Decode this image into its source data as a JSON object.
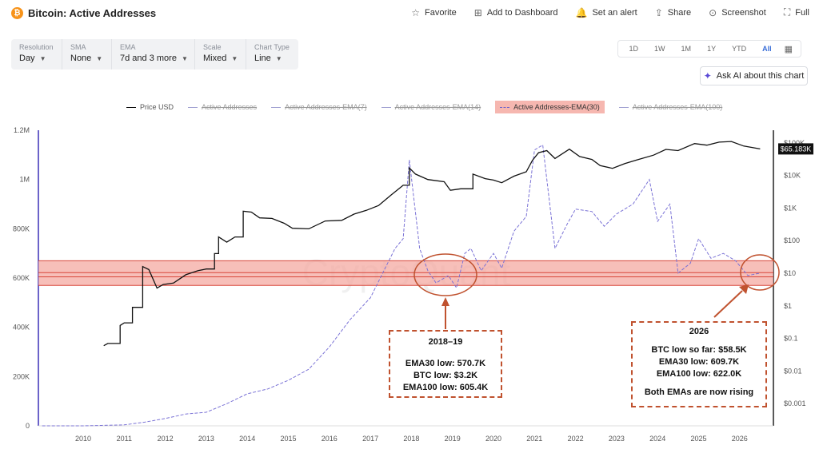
{
  "header": {
    "coin_glyph": "₿",
    "title": "Bitcoin: Active Addresses",
    "actions": [
      {
        "icon": "star-icon",
        "glyph": "☆",
        "label": "Favorite"
      },
      {
        "icon": "dashboard-add-icon",
        "glyph": "⊞",
        "label": "Add to Dashboard"
      },
      {
        "icon": "bell-icon",
        "glyph": "🔔",
        "label": "Set an alert"
      },
      {
        "icon": "share-icon",
        "glyph": "⇪",
        "label": "Share"
      },
      {
        "icon": "camera-icon",
        "glyph": "⊙",
        "label": "Screenshot"
      },
      {
        "icon": "fullscreen-icon",
        "glyph": "⛶",
        "label": "Full"
      }
    ]
  },
  "controls": [
    {
      "label": "Resolution",
      "value": "Day"
    },
    {
      "label": "SMA",
      "value": "None"
    },
    {
      "label": "EMA",
      "value": "7d and 3 more"
    },
    {
      "label": "Scale",
      "value": "Mixed"
    },
    {
      "label": "Chart Type",
      "value": "Line"
    }
  ],
  "ranges": {
    "items": [
      "1D",
      "1W",
      "1M",
      "1Y",
      "YTD",
      "All"
    ],
    "active": "All",
    "calendar_icon": "calendar-icon"
  },
  "ask_ai": {
    "icon": "sparkle-icon",
    "label": "Ask AI about this chart"
  },
  "legend": [
    {
      "label": "Price USD",
      "state": "on"
    },
    {
      "label": "Active Addresses",
      "state": "off"
    },
    {
      "label": "Active Addresses-EMA(7)",
      "state": "off"
    },
    {
      "label": "Active Addresses-EMA(14)",
      "state": "off"
    },
    {
      "label": "Active Addresses-EMA(30)",
      "state": "highlight"
    },
    {
      "label": "Active Addresses-EMA(100)",
      "state": "off"
    }
  ],
  "chart_data": {
    "type": "line",
    "watermark": "CryptoQuant",
    "colors": {
      "price": "#111111",
      "ema30": "#7b73d6",
      "band_fill": "#f4a9a1",
      "band_line": "#d8463a",
      "annotation": "#c0522f"
    },
    "x_ticks": [
      "2010",
      "2011",
      "2012",
      "2013",
      "2014",
      "2015",
      "2016",
      "2017",
      "2018",
      "2019",
      "2020",
      "2021",
      "2022",
      "2023",
      "2024",
      "2025",
      "2026"
    ],
    "xlim": [
      2009,
      2026.8
    ],
    "left_axis": {
      "scale": "linear",
      "ylim": [
        0,
        1200000
      ],
      "ticks": [
        0,
        200000,
        400000,
        600000,
        800000,
        1000000,
        1200000
      ],
      "tick_labels": [
        "0",
        "200K",
        "400K",
        "600K",
        "800K",
        "1M",
        "1.2M"
      ]
    },
    "right_axis": {
      "scale": "log",
      "ticks": [
        0.001,
        0.01,
        0.1,
        1,
        10,
        100,
        1000,
        10000,
        100000
      ],
      "tick_labels": [
        "$0.001",
        "$0.01",
        "$0.1",
        "$1",
        "$10",
        "$100",
        "$1K",
        "$10K",
        "$100K"
      ],
      "current_label": "$65.183K"
    },
    "band": {
      "low": 570000,
      "high": 670000,
      "lines": [
        605000,
        622000
      ]
    },
    "series": [
      {
        "name": "Price USD",
        "axis": "right",
        "style": "solid",
        "x": [
          2010.5,
          2010.6,
          2010.7,
          2010.8,
          2010.9,
          2011.0,
          2011.2,
          2011.45,
          2011.6,
          2011.8,
          2011.95,
          2012.2,
          2012.5,
          2012.8,
          2013.0,
          2013.2,
          2013.3,
          2013.5,
          2013.7,
          2013.9,
          2014.1,
          2014.3,
          2014.6,
          2014.9,
          2015.1,
          2015.5,
          2015.9,
          2016.3,
          2016.6,
          2016.9,
          2017.2,
          2017.5,
          2017.8,
          2017.95,
          2018.1,
          2018.4,
          2018.8,
          2018.95,
          2019.2,
          2019.5,
          2019.8,
          2020.0,
          2020.2,
          2020.5,
          2020.8,
          2020.95,
          2021.1,
          2021.3,
          2021.5,
          2021.85,
          2022.1,
          2022.4,
          2022.6,
          2022.9,
          2023.2,
          2023.5,
          2023.9,
          2024.2,
          2024.5,
          2024.9,
          2025.2,
          2025.5,
          2025.8,
          2026.1,
          2026.5
        ],
        "values": [
          0.06,
          0.07,
          0.07,
          0.07,
          0.25,
          0.3,
          0.9,
          16,
          13,
          3.5,
          4.5,
          5,
          9,
          12,
          13.5,
          40,
          130,
          90,
          130,
          800,
          750,
          500,
          480,
          340,
          240,
          230,
          400,
          420,
          650,
          850,
          1200,
          2500,
          5000,
          17000,
          11000,
          7500,
          6400,
          3500,
          3900,
          11000,
          8000,
          7200,
          6000,
          9500,
          13000,
          29000,
          50000,
          58000,
          33000,
          64000,
          38000,
          31000,
          20000,
          16500,
          23000,
          30000,
          42000,
          63000,
          58000,
          95000,
          85000,
          105000,
          110000,
          80000,
          65183
        ]
      },
      {
        "name": "Active Addresses-EMA(30)",
        "axis": "left",
        "style": "dashed",
        "x": [
          2009.0,
          2010.0,
          2011.0,
          2011.5,
          2012.0,
          2012.5,
          2013.0,
          2013.5,
          2014.0,
          2014.5,
          2015.0,
          2015.5,
          2016.0,
          2016.5,
          2017.0,
          2017.3,
          2017.6,
          2017.8,
          2017.95,
          2018.2,
          2018.4,
          2018.6,
          2018.9,
          2019.1,
          2019.3,
          2019.45,
          2019.7,
          2020.0,
          2020.2,
          2020.5,
          2020.8,
          2021.0,
          2021.2,
          2021.5,
          2021.8,
          2022.0,
          2022.4,
          2022.7,
          2023.0,
          2023.4,
          2023.8,
          2024.0,
          2024.3,
          2024.5,
          2024.8,
          2025.0,
          2025.3,
          2025.6,
          2025.9,
          2026.2,
          2026.5
        ],
        "values": [
          0,
          0,
          4000,
          15000,
          30000,
          48000,
          55000,
          90000,
          130000,
          150000,
          185000,
          230000,
          320000,
          430000,
          520000,
          620000,
          720000,
          760000,
          1080000,
          720000,
          630000,
          580000,
          610000,
          560000,
          700000,
          720000,
          630000,
          700000,
          640000,
          790000,
          850000,
          1120000,
          1140000,
          720000,
          820000,
          880000,
          870000,
          810000,
          860000,
          900000,
          1000000,
          830000,
          900000,
          620000,
          660000,
          760000,
          680000,
          700000,
          670000,
          610000,
          620000
        ]
      }
    ],
    "callouts": [
      {
        "title": "2018–19",
        "lines": [
          "EMA30 low: 570.7K",
          "BTC low: $3.2K",
          "EMA100 low: 605.4K"
        ]
      },
      {
        "title": "2026",
        "lines": [
          "BTC low so far: $58.5K",
          "EMA30 low: 609.7K",
          "EMA100 low: 622.0K",
          "",
          "Both EMAs are now rising"
        ]
      }
    ]
  }
}
